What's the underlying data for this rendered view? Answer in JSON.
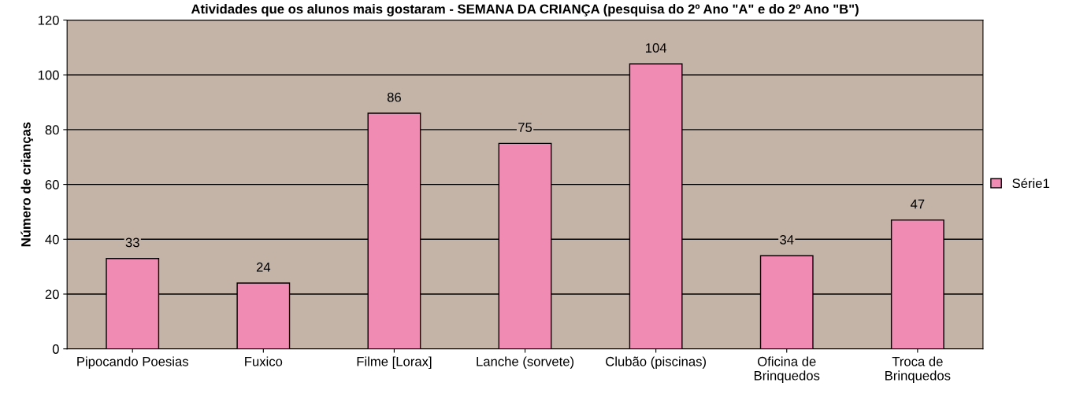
{
  "chart_data": {
    "type": "bar",
    "title": "Atividades que os alunos mais gostaram - SEMANA DA CRIANÇA (pesquisa do 2º Ano \"A\" e do 2º Ano \"B\")",
    "ylabel": "Número de crianças",
    "categories": [
      "Pipocando Poesias",
      "Fuxico",
      "Filme [Lorax]",
      "Lanche (sorvete)",
      "Clubão (piscinas)",
      "Oficina de\nBrinquedos",
      "Troca de\nBrinquedos"
    ],
    "series": [
      {
        "name": "Série1",
        "color": "#f08cb4",
        "values": [
          33,
          24,
          86,
          75,
          104,
          34,
          47
        ]
      }
    ],
    "ylim": [
      0,
      120
    ],
    "yticks": [
      0,
      20,
      40,
      60,
      80,
      100,
      120
    ],
    "grid": "y",
    "legend": "right",
    "data_labels": true
  }
}
